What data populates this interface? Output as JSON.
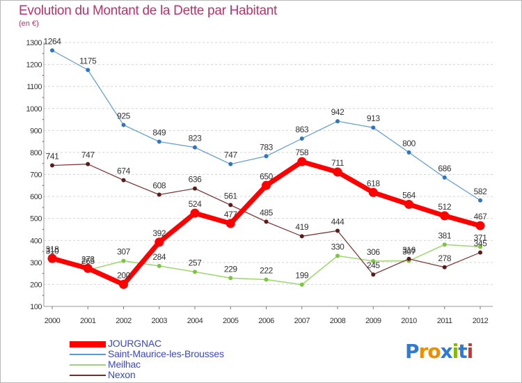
{
  "title": "Evolution du Montant de la Dette par Habitant",
  "unit": "(en €)",
  "logo": {
    "text": "Proxiti",
    "colors": [
      "#2e7bd6",
      "#f08c00",
      "#f08c00",
      "#2e7bd6",
      "#88b800",
      "#2e7bd6",
      "#d8302a"
    ]
  },
  "chart_data": {
    "type": "line",
    "title": "Evolution du Montant de la Dette par Habitant",
    "ylabel": "(en €)",
    "xlabel": "",
    "x": [
      "2000",
      "2001",
      "2002",
      "2003",
      "2004",
      "2005",
      "2006",
      "2007",
      "2008",
      "2009",
      "2010",
      "2011",
      "2012"
    ],
    "ylim": [
      100,
      1300
    ],
    "yticks": [
      "100",
      "200",
      "300",
      "400",
      "500",
      "600",
      "700",
      "800",
      "900",
      "1000",
      "1100",
      "1200",
      "1300"
    ],
    "grid": "horizontal dashed",
    "legend_placement": "bottom-left",
    "series": [
      {
        "name": "JOURGNAC",
        "color": "#ff0000",
        "values": [
          318,
          273,
          200,
          392,
          524,
          477,
          650,
          758,
          711,
          618,
          564,
          512,
          467
        ]
      },
      {
        "name": "Saint-Maurice-les-Brousses",
        "color": "#5b9bd5",
        "values": [
          1264,
          1175,
          925,
          849,
          823,
          747,
          783,
          863,
          942,
          913,
          800,
          686,
          582
        ]
      },
      {
        "name": "Meilhac",
        "color": "#9ad96a",
        "values": [
          310,
          265,
          307,
          284,
          257,
          229,
          222,
          199,
          330,
          306,
          307,
          381,
          371
        ]
      },
      {
        "name": "Nexon",
        "color": "#7a2a2a",
        "values": [
          741,
          747,
          674,
          608,
          636,
          561,
          485,
          419,
          444,
          245,
          316,
          278,
          345
        ]
      }
    ]
  }
}
